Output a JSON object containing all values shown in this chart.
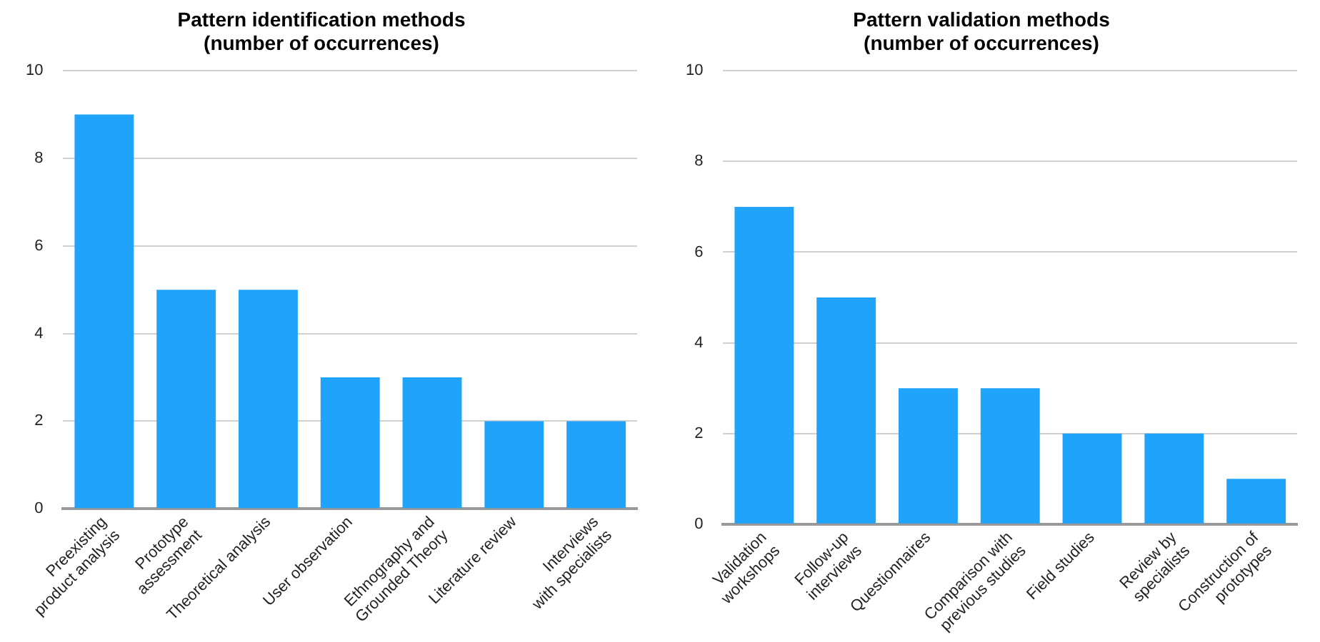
{
  "chart_data": [
    {
      "type": "bar",
      "title": "Pattern identification methods\n(number of occurrences)",
      "categories": [
        "Preexisting\nproduct analysis",
        "Prototype\nassessment",
        "Theoretical analysis",
        "User observation",
        "Ethnography and\nGrounded Theory",
        "Literature review",
        "Interviews\nwith specialists"
      ],
      "values": [
        9,
        5,
        5,
        3,
        3,
        2,
        2
      ],
      "color": "#1fa3fb",
      "ylim": [
        0,
        10
      ],
      "yticks": [
        0,
        2,
        4,
        6,
        8,
        10
      ],
      "grid": "y"
    },
    {
      "type": "bar",
      "title": "Pattern validation methods\n(number of occurrences)",
      "categories": [
        "Validation\nworkshops",
        "Follow-up\ninterviews",
        "Questionnaires",
        "Comparison with\nprevious studies",
        "Field studies",
        "Review by\nspecialists",
        "Construction of\nprototypes"
      ],
      "values": [
        7,
        5,
        3,
        3,
        2,
        2,
        1
      ],
      "color": "#1fa3fb",
      "ylim": [
        0,
        10
      ],
      "yticks": [
        0,
        2,
        4,
        6,
        8,
        10
      ],
      "grid": "y"
    }
  ]
}
